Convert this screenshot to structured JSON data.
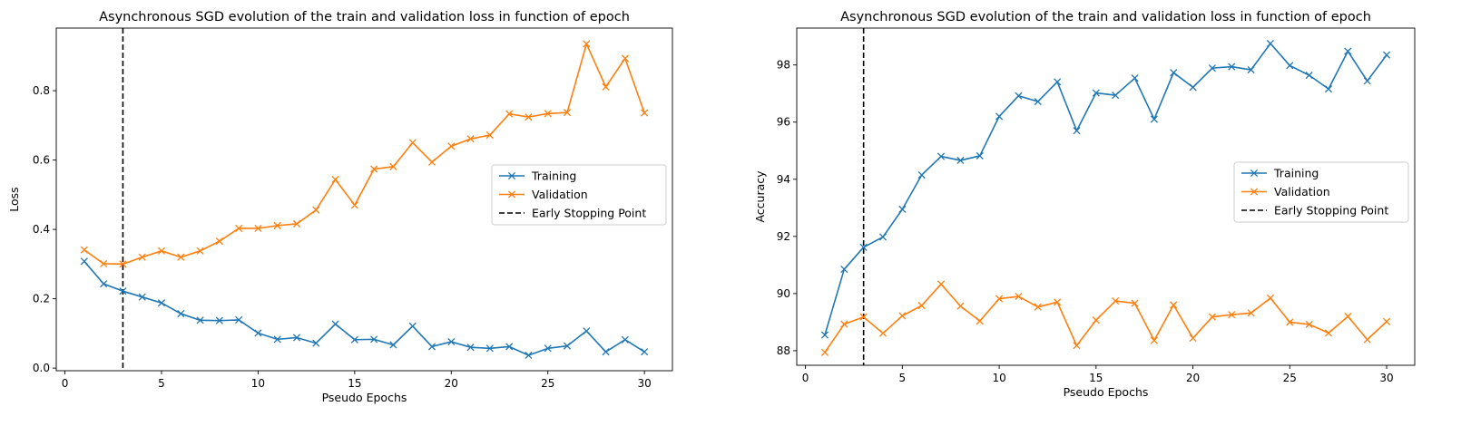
{
  "colors": {
    "training": "#1f77b4",
    "validation": "#ff7f0e",
    "early_stop": "#000000",
    "axis": "#000000"
  },
  "chart_data": [
    {
      "type": "line",
      "title": "Asynchronous SGD evolution of the train and validation loss in function of epoch",
      "xlabel": "Pseudo Epochs",
      "ylabel": "Loss",
      "xlim": [
        -0.45,
        31.45
      ],
      "ylim": [
        -0.0075,
        0.9805
      ],
      "xticks": [
        0,
        5,
        10,
        15,
        20,
        25,
        30
      ],
      "xtick_labels": [
        "0",
        "5",
        "10",
        "15",
        "20",
        "25",
        "30"
      ],
      "yticks": [
        0.0,
        0.2,
        0.4,
        0.6,
        0.8
      ],
      "ytick_labels": [
        "0.0",
        "0.2",
        "0.4",
        "0.6",
        "0.8"
      ],
      "grid": false,
      "legend_position": "center-right",
      "early_stopping_x": 3,
      "x": [
        1,
        2,
        3,
        4,
        5,
        6,
        7,
        8,
        9,
        10,
        11,
        12,
        13,
        14,
        15,
        16,
        17,
        18,
        19,
        20,
        21,
        22,
        23,
        24,
        25,
        26,
        27,
        28,
        29,
        30
      ],
      "series": [
        {
          "name": "Training",
          "marker": "x",
          "values": [
            0.308,
            0.243,
            0.222,
            0.205,
            0.188,
            0.157,
            0.138,
            0.137,
            0.139,
            0.101,
            0.083,
            0.088,
            0.072,
            0.127,
            0.082,
            0.083,
            0.067,
            0.121,
            0.062,
            0.076,
            0.06,
            0.057,
            0.062,
            0.037,
            0.057,
            0.064,
            0.107,
            0.047,
            0.082,
            0.047
          ]
        },
        {
          "name": "Validation",
          "marker": "x",
          "values": [
            0.341,
            0.301,
            0.3,
            0.32,
            0.338,
            0.32,
            0.338,
            0.366,
            0.403,
            0.403,
            0.411,
            0.416,
            0.456,
            0.544,
            0.47,
            0.574,
            0.581,
            0.65,
            0.594,
            0.64,
            0.661,
            0.672,
            0.733,
            0.724,
            0.734,
            0.737,
            0.935,
            0.811,
            0.893,
            0.736
          ]
        }
      ],
      "legend": [
        "Training",
        "Validation",
        "Early Stopping Point"
      ]
    },
    {
      "type": "line",
      "title": "Asynchronous SGD evolution of the train and validation loss in function of epoch",
      "xlabel": "Pseudo Epochs",
      "ylabel": "Accuracy",
      "xlim": [
        -0.45,
        31.45
      ],
      "ylim": [
        87.49,
        99.29
      ],
      "xticks": [
        0,
        5,
        10,
        15,
        20,
        25,
        30
      ],
      "xtick_labels": [
        "0",
        "5",
        "10",
        "15",
        "20",
        "25",
        "30"
      ],
      "yticks": [
        88,
        90,
        92,
        94,
        96,
        98
      ],
      "ytick_labels": [
        "88",
        "90",
        "92",
        "94",
        "96",
        "98"
      ],
      "grid": false,
      "legend_position": "center-right",
      "early_stopping_x": 3,
      "x": [
        1,
        2,
        3,
        4,
        5,
        6,
        7,
        8,
        9,
        10,
        11,
        12,
        13,
        14,
        15,
        16,
        17,
        18,
        19,
        20,
        21,
        22,
        23,
        24,
        25,
        26,
        27,
        28,
        29,
        30
      ],
      "series": [
        {
          "name": "Training",
          "marker": "x",
          "values": [
            88.55,
            90.85,
            91.62,
            91.98,
            92.95,
            94.15,
            94.8,
            94.66,
            94.82,
            96.2,
            96.92,
            96.72,
            97.41,
            95.7,
            97.02,
            96.94,
            97.54,
            96.1,
            97.73,
            97.22,
            97.89,
            97.94,
            97.83,
            98.75,
            97.98,
            97.64,
            97.16,
            98.48,
            97.44,
            98.35
          ]
        },
        {
          "name": "Validation",
          "marker": "x",
          "values": [
            87.94,
            88.93,
            89.18,
            88.61,
            89.22,
            89.58,
            90.33,
            89.56,
            89.04,
            89.82,
            89.9,
            89.53,
            89.7,
            88.18,
            89.07,
            89.74,
            89.66,
            88.36,
            89.6,
            88.44,
            89.18,
            89.26,
            89.32,
            89.84,
            89.0,
            88.92,
            88.62,
            89.2,
            88.39,
            89.02
          ]
        }
      ],
      "legend": [
        "Training",
        "Validation",
        "Early Stopping Point"
      ]
    }
  ]
}
